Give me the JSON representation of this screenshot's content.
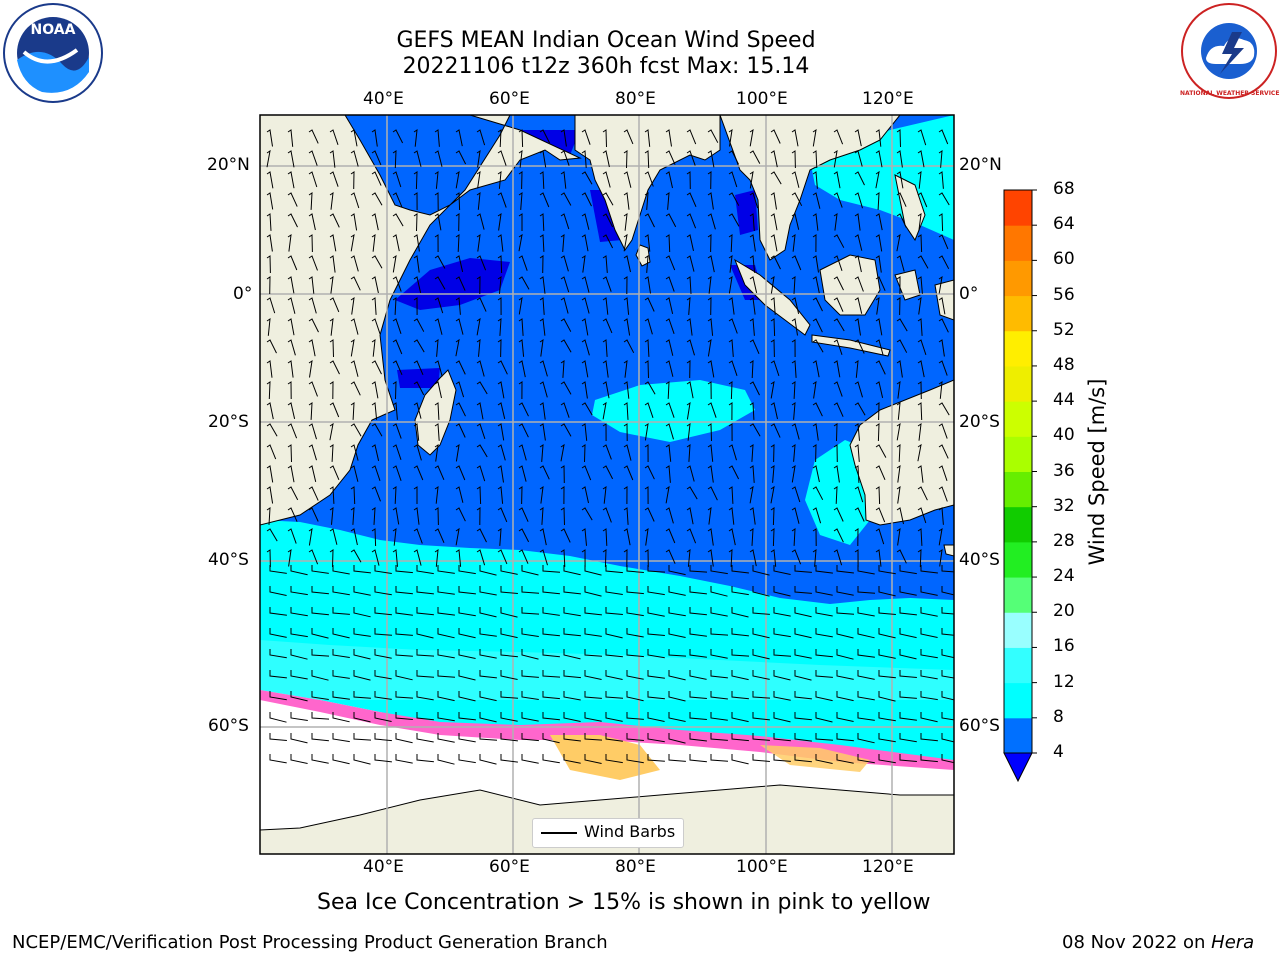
{
  "header": {
    "title_line1": "GEFS MEAN Indian Ocean Wind Speed",
    "title_line2": "20221106 t12z 360h fcst   Max: 15.14"
  },
  "logos": {
    "left": {
      "text": "NOAA",
      "icon": "noaa-logo-icon"
    },
    "right": {
      "text": "NATIONAL WEATHER SERVICE",
      "icon": "nws-logo-icon"
    }
  },
  "map": {
    "top_lon_labels": [
      "40°E",
      "60°E",
      "80°E",
      "100°E",
      "120°E"
    ],
    "bottom_lon_labels": [
      "40°E",
      "60°E",
      "80°E",
      "100°E",
      "120°E"
    ],
    "left_lat_labels": [
      "20°N",
      "0°",
      "20°S",
      "40°S",
      "60°S"
    ],
    "right_lat_labels": [
      "20°N",
      "0°",
      "20°S",
      "40°S",
      "60°S"
    ],
    "lon_range": [
      20,
      130
    ],
    "lat_range": [
      -75,
      27
    ],
    "legend_label": "Wind Barbs",
    "colors": {
      "land": "#efefdf",
      "ice_free_ocean_4_8": "#0066ff",
      "ocean_lt4": "#0000e6",
      "ocean_8_12": "#00ffff",
      "ocean_12_16": "#33ffff",
      "sea_ice_pink": "#ff66cc",
      "sea_ice_yellow": "#ffcc66"
    }
  },
  "colorbar": {
    "title": "Wind Speed [m/s]",
    "levels": [
      4,
      8,
      12,
      16,
      20,
      24,
      28,
      32,
      36,
      40,
      44,
      48,
      52,
      56,
      60,
      64,
      68
    ],
    "colors": [
      "#0070ff",
      "#00ffff",
      "#33ffff",
      "#99ffff",
      "#55ff77",
      "#22ee22",
      "#11cc00",
      "#66ee00",
      "#aaff00",
      "#ccff00",
      "#eeee00",
      "#ffee00",
      "#ffbb00",
      "#ff9900",
      "#ff7700",
      "#ff4400",
      "#ff1100"
    ],
    "under_color": "#0000ff"
  },
  "caption": "Sea Ice Concentration > 15% is shown in pink to yellow",
  "footer": {
    "left": "NCEP/EMC/Verification Post Processing Product Generation Branch",
    "right_date": "08 Nov 2022 on ",
    "right_system": "Hera"
  }
}
